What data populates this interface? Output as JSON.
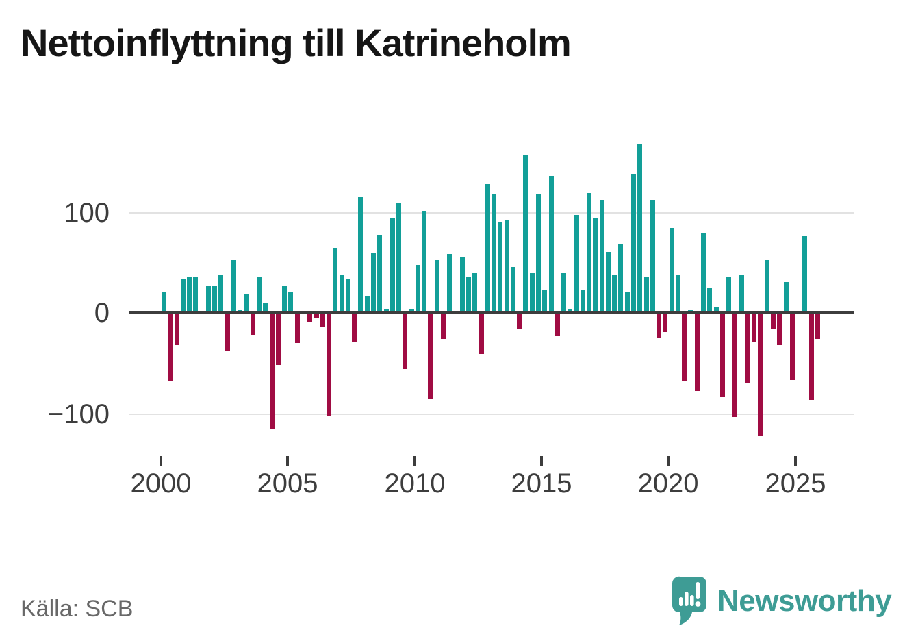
{
  "title": "Nettoinflyttning till Katrineholm",
  "source": "Källa: SCB",
  "branding": {
    "name": "Newsworthy",
    "color": "#3e9c95"
  },
  "colors": {
    "positive_bar": "#129f98",
    "negative_bar": "#a00c43",
    "zero_line": "#3d3d3d",
    "gridline": "#e2e2e2",
    "axis_text": "#3d3d3d",
    "title_text": "#161616",
    "source_text": "#686868"
  },
  "axis": {
    "y_labels": [
      "100",
      "0",
      "−100"
    ],
    "x_labels": [
      "2000",
      "2005",
      "2010",
      "2015",
      "2020",
      "2025"
    ]
  },
  "chart_data": {
    "type": "bar",
    "title": "Nettoinflyttning till Katrineholm",
    "start_year": 2000,
    "frequency": "quarterly",
    "y_ticks": [
      100,
      0,
      -100
    ],
    "ylim": [
      -130,
      180
    ],
    "grid": true,
    "positive_color": "#129f98",
    "negative_color": "#a00c43",
    "x_tick_years": [
      2000,
      2005,
      2010,
      2015,
      2020,
      2025
    ],
    "values": [
      22,
      -67,
      -31,
      34,
      37,
      37,
      0,
      28,
      28,
      38,
      -37,
      53,
      4,
      20,
      -21,
      36,
      10,
      -115,
      -51,
      27,
      22,
      -29,
      0,
      -8,
      -4,
      -13,
      -101,
      65,
      39,
      35,
      -28,
      116,
      18,
      60,
      78,
      5,
      95,
      110,
      -55,
      5,
      48,
      102,
      -85,
      54,
      -25,
      59,
      2,
      56,
      36,
      40,
      -40,
      129,
      119,
      91,
      93,
      46,
      -15,
      158,
      40,
      119,
      23,
      137,
      -22,
      41,
      5,
      98,
      24,
      120,
      95,
      113,
      61,
      38,
      69,
      22,
      139,
      168,
      37,
      113,
      -24,
      -18,
      85,
      39,
      -67,
      4,
      -77,
      80,
      26,
      6,
      -83,
      36,
      -103,
      38,
      -69,
      -28,
      -121,
      53,
      -15,
      -31,
      31,
      -66,
      0,
      77,
      -86,
      -25
    ]
  }
}
